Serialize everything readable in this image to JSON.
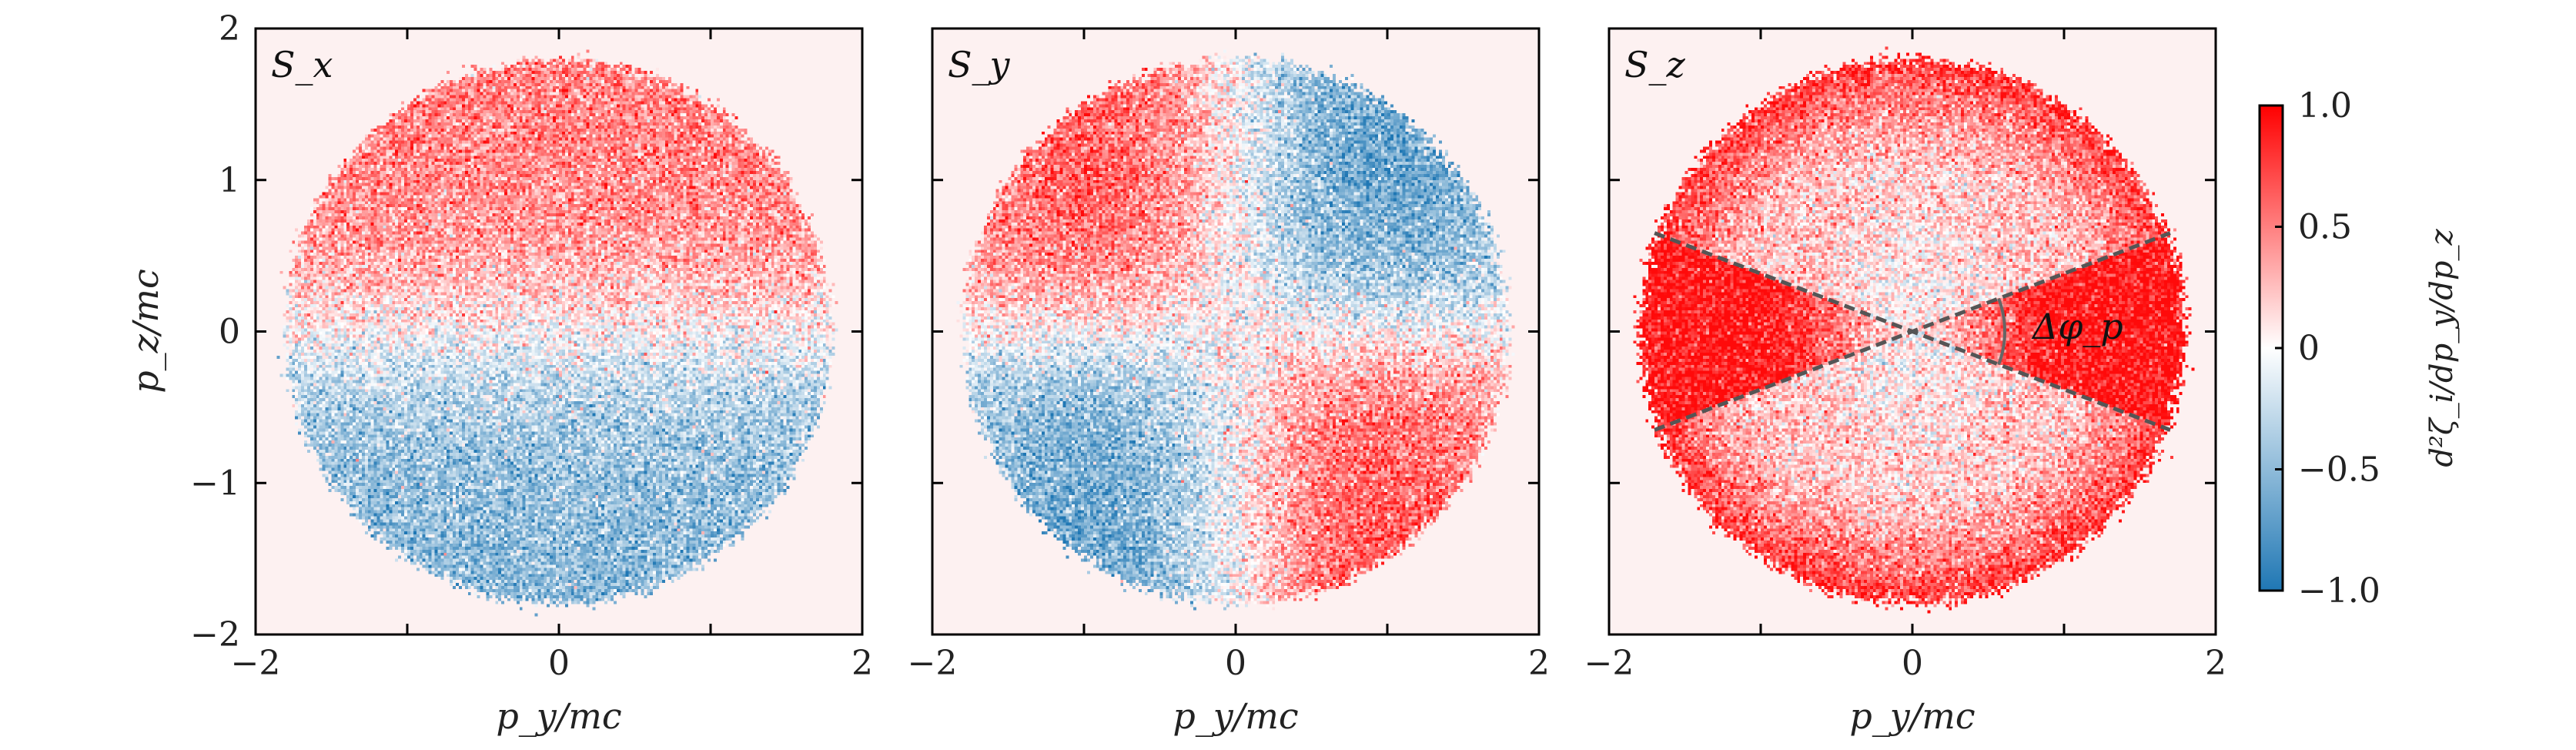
{
  "chart_data": [
    {
      "type": "heatmap",
      "panel_label": "S_x",
      "pattern": "upper-red-lower-blue",
      "xlabel": "p_y/mc",
      "ylabel": "p_z/mc",
      "xlim": [
        -2,
        2
      ],
      "ylim": [
        -2,
        2
      ],
      "xticks": [
        "−2",
        "0",
        "2"
      ],
      "yticks": [
        "−2",
        "−1",
        "0",
        "1",
        "2"
      ],
      "circle_radius": 1.8,
      "regions": [
        {
          "name": "upper half",
          "center": [
            0,
            0.9
          ],
          "value": 0.45
        },
        {
          "name": "lower half",
          "center": [
            0,
            -0.9
          ],
          "value": -0.45
        }
      ]
    },
    {
      "type": "heatmap",
      "panel_label": "S_y",
      "pattern": "quadrupole",
      "xlabel": "p_y/mc",
      "ylabel": "",
      "xlim": [
        -2,
        2
      ],
      "ylim": [
        -2,
        2
      ],
      "xticks": [
        "−2",
        "0",
        "2"
      ],
      "yticks": [],
      "circle_radius": 1.8,
      "regions": [
        {
          "name": "upper-left",
          "center": [
            -1.0,
            0.6
          ],
          "value": 0.6
        },
        {
          "name": "upper-right",
          "center": [
            1.0,
            0.6
          ],
          "value": -0.6
        },
        {
          "name": "lower-left",
          "center": [
            -1.0,
            -0.6
          ],
          "value": -0.6
        },
        {
          "name": "lower-right",
          "center": [
            1.0,
            -0.6
          ],
          "value": 0.6
        }
      ]
    },
    {
      "type": "heatmap",
      "panel_label": "S_z",
      "pattern": "bowtie",
      "xlabel": "p_y/mc",
      "ylabel": "",
      "xlim": [
        -2,
        2
      ],
      "ylim": [
        -2,
        2
      ],
      "xticks": [
        "−2",
        "0",
        "2"
      ],
      "yticks": [],
      "circle_radius": 1.8,
      "regions": [
        {
          "name": "left and right wedges",
          "value": 0.9
        },
        {
          "name": "top and bottom wedges",
          "value": 0.3
        },
        {
          "name": "outer rim",
          "value": 0.8
        }
      ],
      "dashed_lines": [
        {
          "from": [
            -1.7,
            0.65
          ],
          "to": [
            1.7,
            -0.65
          ]
        },
        {
          "from": [
            -1.7,
            -0.65
          ],
          "to": [
            1.7,
            0.65
          ]
        }
      ],
      "annotation": "Δφ_p"
    }
  ],
  "colorbar": {
    "label": "d²ζ_i/dp_y/dp_z",
    "range": [
      -1.0,
      1.0
    ],
    "ticks": [
      "1.0",
      "0.5",
      "0",
      "−0.5",
      "−1.0"
    ],
    "colors": {
      "negative": "#1f77b4",
      "zero": "#ffffff",
      "positive": "#ff1a1a"
    }
  },
  "colors": {
    "background": "#fdf1f1",
    "frame": "#000000",
    "dashed_line": "#555555"
  }
}
